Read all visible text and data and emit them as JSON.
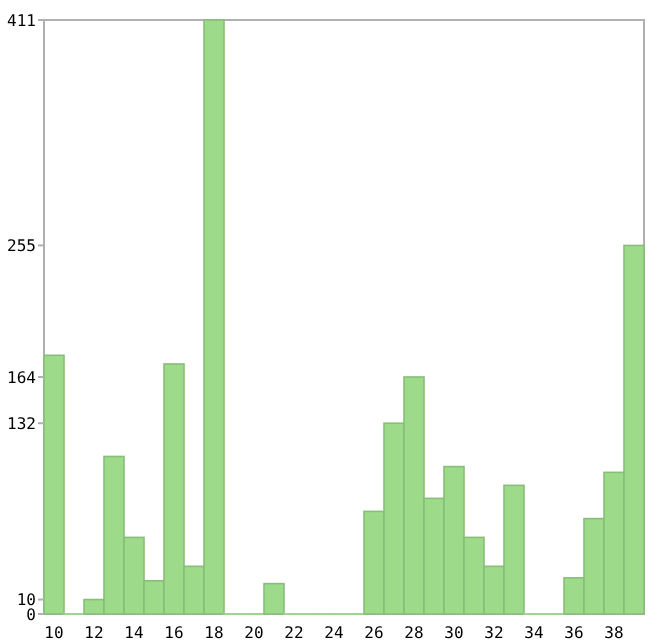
{
  "chart_data": {
    "type": "bar",
    "categories": [
      "10",
      null,
      "12",
      null,
      "14",
      null,
      "16",
      null,
      "18",
      null,
      "20",
      null,
      "22",
      null,
      "24",
      null,
      "26",
      null,
      "28",
      null,
      "30",
      null,
      "32",
      null,
      "34",
      null,
      "36",
      null,
      "38",
      null
    ],
    "values": [
      179,
      0,
      10,
      109,
      53,
      23,
      173,
      33,
      411,
      0,
      0,
      21,
      0,
      0,
      0,
      0,
      71,
      132,
      164,
      80,
      102,
      53,
      33,
      89,
      0,
      0,
      25,
      66,
      98,
      255
    ],
    "color": "#9ddb8a",
    "ylim": [
      0,
      411
    ],
    "yticks": [
      0,
      10,
      132,
      164,
      255,
      411
    ],
    "grid": false
  }
}
